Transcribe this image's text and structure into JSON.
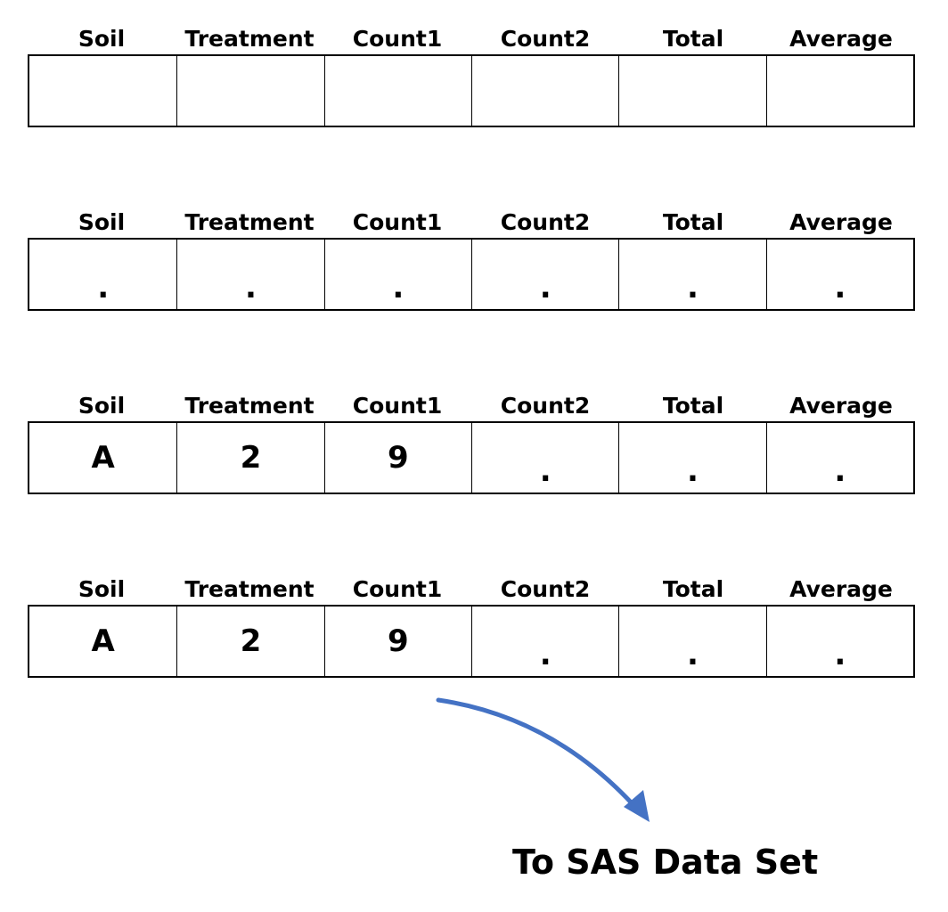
{
  "columns": [
    "Soil",
    "Treatment",
    "Count1",
    "Count2",
    "Total",
    "Average"
  ],
  "rows": [
    [
      "",
      "",
      "",
      "",
      "",
      ""
    ],
    [
      ".",
      ".",
      ".",
      ".",
      ".",
      "."
    ],
    [
      "A",
      "2",
      "9",
      ".",
      ".",
      "."
    ],
    [
      "A",
      "2",
      "9",
      ".",
      ".",
      "."
    ]
  ],
  "caption": "To SAS Data Set",
  "colors": {
    "arrow": "#4472C4",
    "border": "#000000",
    "text": "#000000"
  }
}
